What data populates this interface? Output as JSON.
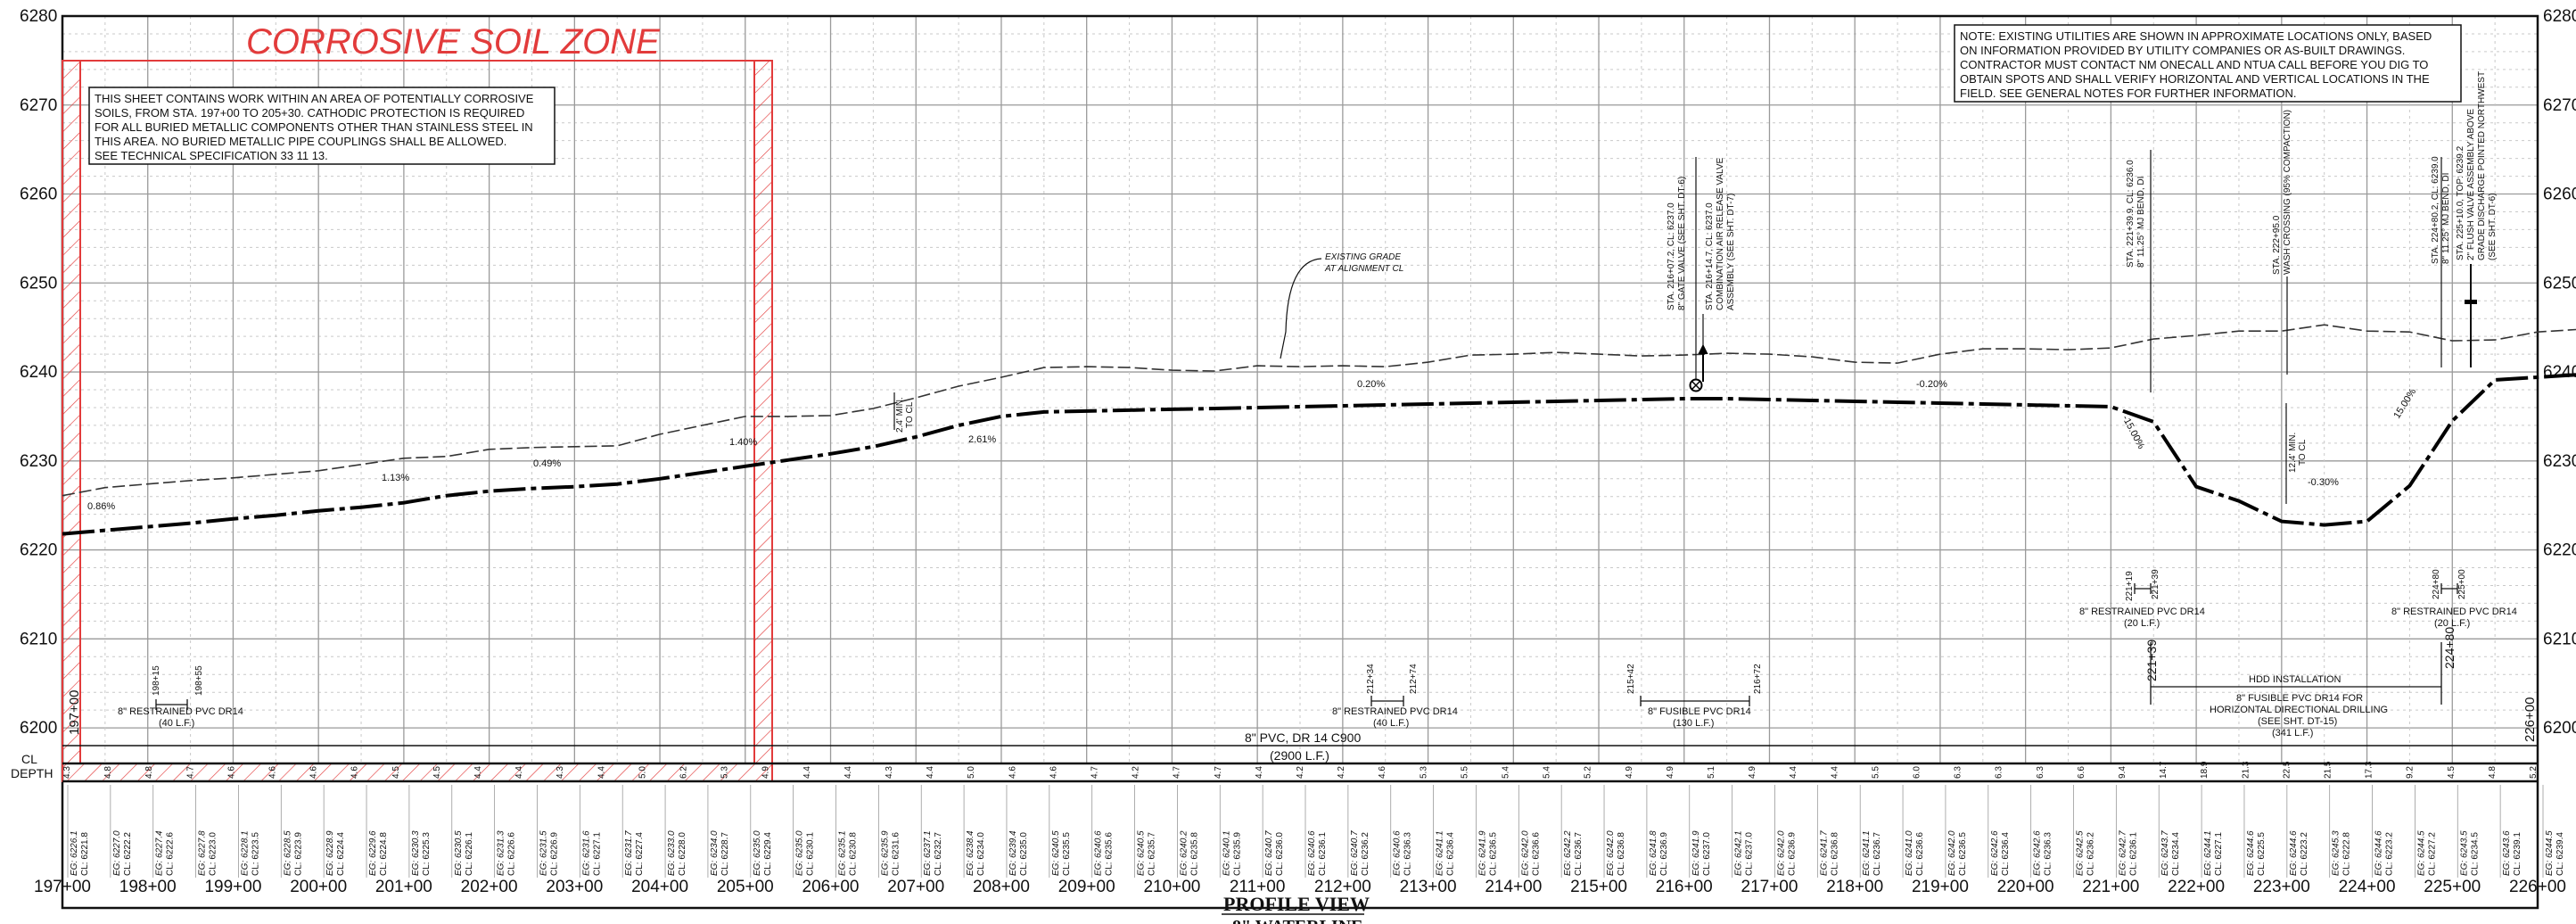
{
  "zone_title": "CORROSIVE SOIL ZONE",
  "corrosive_note": [
    "THIS SHEET CONTAINS WORK WITHIN AN AREA OF POTENTIALLY CORROSIVE",
    "SOILS, FROM STA. 197+00 TO 205+30.  CATHODIC PROTECTION IS REQUIRED",
    "FOR ALL BURIED METALLIC COMPONENTS OTHER THAN STAINLESS STEEL IN",
    "THIS AREA.  NO BURIED METALLIC PIPE COUPLINGS SHALL BE ALLOWED.",
    "SEE TECHNICAL SPECIFICATION 33 11 13."
  ],
  "utility_note": [
    "NOTE: EXISTING UTILITIES ARE SHOWN IN APPROXIMATE LOCATIONS ONLY, BASED",
    "ON INFORMATION PROVIDED BY UTILITY COMPANIES OR AS-BUILT DRAWINGS.",
    "CONTRACTOR MUST CONTACT NM ONECALL AND NTUA CALL BEFORE YOU DIG TO",
    "OBTAIN SPOTS AND SHALL VERIFY HORIZONTAL AND VERTICAL LOCATIONS IN THE",
    "FIELD. SEE GENERAL NOTES FOR FURTHER INFORMATION."
  ],
  "elevation_labels": [
    "6280",
    "6270",
    "6260",
    "6250",
    "6240",
    "6230",
    "6220",
    "6210",
    "6200"
  ],
  "station_labels": [
    "197+00",
    "198+00",
    "199+00",
    "200+00",
    "201+00",
    "202+00",
    "203+00",
    "204+00",
    "205+00",
    "206+00",
    "207+00",
    "208+00",
    "209+00",
    "210+00",
    "211+00",
    "212+00",
    "213+00",
    "214+00",
    "215+00",
    "216+00",
    "217+00",
    "218+00",
    "219+00",
    "220+00",
    "221+00",
    "222+00",
    "223+00",
    "224+00",
    "225+00",
    "226+00"
  ],
  "depth_values": [
    "4.3",
    "4.8",
    "4.8",
    "4.7",
    "4.6",
    "4.6",
    "4.6",
    "4.6",
    "4.5",
    "4.5",
    "4.4",
    "4.4",
    "4.3",
    "4.4",
    "5.0",
    "6.2",
    "5.3",
    "4.9",
    "4.4",
    "4.4",
    "4.3",
    "4.4",
    "5.0",
    "4.6",
    "4.6",
    "4.7",
    "4.2",
    "4.7",
    "4.7",
    "4.4",
    "4.2",
    "4.2",
    "4.6",
    "5.3",
    "5.5",
    "5.4",
    "5.4",
    "5.2",
    "4.9",
    "4.9",
    "5.1",
    "4.9",
    "4.4",
    "4.4",
    "5.5",
    "6.0",
    "6.3",
    "6.3",
    "6.3",
    "6.6",
    "9.4",
    "14.7",
    "18.9",
    "21.3",
    "22.5",
    "21.5",
    "17.3",
    "9.2",
    "4.5",
    "4.8",
    "5.2"
  ],
  "profile_rows": [
    [
      "6226.1",
      "6221.8"
    ],
    [
      "6227.0",
      "6222.2"
    ],
    [
      "6227.4",
      "6222.6"
    ],
    [
      "6227.8",
      "6223.0"
    ],
    [
      "6228.1",
      "6223.5"
    ],
    [
      "6228.5",
      "6223.9"
    ],
    [
      "6228.9",
      "6224.4"
    ],
    [
      "6229.6",
      "6224.8"
    ],
    [
      "6230.3",
      "6225.3"
    ],
    [
      "6230.5",
      "6226.1"
    ],
    [
      "6231.3",
      "6226.6"
    ],
    [
      "6231.5",
      "6226.9"
    ],
    [
      "6231.6",
      "6227.1"
    ],
    [
      "6231.7",
      "6227.4"
    ],
    [
      "6233.0",
      "6228.0"
    ],
    [
      "6234.0",
      "6228.7"
    ],
    [
      "6235.0",
      "6229.4"
    ],
    [
      "6235.0",
      "6230.1"
    ],
    [
      "6235.1",
      "6230.8"
    ],
    [
      "6235.9",
      "6231.6"
    ],
    [
      "6237.1",
      "6232.7"
    ],
    [
      "6238.4",
      "6234.0"
    ],
    [
      "6239.4",
      "6235.0"
    ],
    [
      "6240.5",
      "6235.5"
    ],
    [
      "6240.6",
      "6235.6"
    ],
    [
      "6240.5",
      "6235.7"
    ],
    [
      "6240.2",
      "6235.8"
    ],
    [
      "6240.1",
      "6235.9"
    ],
    [
      "6240.7",
      "6236.0"
    ],
    [
      "6240.6",
      "6236.1"
    ],
    [
      "6240.7",
      "6236.2"
    ],
    [
      "6240.6",
      "6236.3"
    ],
    [
      "6241.1",
      "6236.4"
    ],
    [
      "6241.9",
      "6236.5"
    ],
    [
      "6242.0",
      "6236.6"
    ],
    [
      "6242.2",
      "6236.7"
    ],
    [
      "6242.0",
      "6236.8"
    ],
    [
      "6241.8",
      "6236.9"
    ],
    [
      "6241.9",
      "6237.0"
    ],
    [
      "6242.1",
      "6237.0"
    ],
    [
      "6242.0",
      "6236.9"
    ],
    [
      "6241.7",
      "6236.8"
    ],
    [
      "6241.1",
      "6236.7"
    ],
    [
      "6241.0",
      "6236.6"
    ],
    [
      "6242.0",
      "6236.5"
    ],
    [
      "6242.6",
      "6236.4"
    ],
    [
      "6242.6",
      "6236.3"
    ],
    [
      "6242.5",
      "6236.2"
    ],
    [
      "6242.7",
      "6236.1"
    ],
    [
      "6243.7",
      "6234.4"
    ],
    [
      "6244.1",
      "6227.1"
    ],
    [
      "6244.6",
      "6225.5"
    ],
    [
      "6244.6",
      "6223.2"
    ],
    [
      "6245.3",
      "6222.8"
    ],
    [
      "6244.6",
      "6223.2"
    ],
    [
      "6244.5",
      "6227.2"
    ],
    [
      "6243.5",
      "6234.5"
    ],
    [
      "6243.6",
      "6239.1"
    ],
    [
      "6244.5",
      "6239.4"
    ],
    [
      "6244.8",
      "6239.7"
    ]
  ],
  "row_label_eg": "EG:",
  "row_label_cl": "CL:",
  "cl_depth_label": [
    "CL",
    "DEPTH"
  ],
  "grades": [
    "0.86%",
    "1.13%",
    "0.49%",
    "1.40%",
    "2.61%",
    "0.20%",
    "-0.20%",
    "-15.00%",
    "-0.30%",
    "15.00%"
  ],
  "existing_grade_label": [
    "EXISTING GRADE",
    "AT ALIGNMENT CL"
  ],
  "pipe_summary": [
    "8\" PVC, DR 14 C900",
    "(2900 L.F.)"
  ],
  "sta_197": "197+00",
  "sta_226": "226+00",
  "restrained_1": {
    "title": "8\" RESTRAINED PVC DR14",
    "length": "(40 L.F.)",
    "from": "198+15",
    "to": "198+55"
  },
  "restrained_2": {
    "title": "8\" RESTRAINED PVC DR14",
    "length": "(40 L.F.)",
    "from": "212+34",
    "to": "212+74"
  },
  "fusible_1": {
    "title": "8\" FUSIBLE PVC DR14",
    "length": "(130 L.F.)",
    "from": "215+42",
    "to": "216+72"
  },
  "restrained_3": {
    "title": "8\" RESTRAINED PVC DR14",
    "length": "(20 L.F.)",
    "from": "221+19",
    "to": "221+39"
  },
  "restrained_4": {
    "title": "8\" RESTRAINED PVC DR14",
    "length": "(20 L.F.)",
    "from": "224+80",
    "to": "225+00"
  },
  "hdd": {
    "title": "HDD INSTALLATION",
    "lines": [
      "8\" FUSIBLE PVC DR14 FOR",
      "HORIZONTAL DIRECTIONAL DRILLING",
      "(SEE SHT. DT-15)",
      "(341 L.F.)"
    ],
    "from": "221+39",
    "to": "224+80"
  },
  "min_cover_1": [
    "2.4' MIN.",
    "TO CL"
  ],
  "min_cover_2": [
    "12.4' MIN.",
    "TO CL"
  ],
  "callout_gate": [
    "STA. 216+07.2, CL: 6237.0",
    "8\" GATE VALVE (SEE SHT. DT-6)"
  ],
  "callout_arv": [
    "STA. 216+14.7, CL: 6237.0",
    "COMBINATION AIR RELEASE VALVE",
    "ASSEMBLY (SEE SHT. DT-7)"
  ],
  "callout_bend1": [
    "STA. 221+39.9, CL: 6236.0",
    "8\" 11.25° MJ BEND, DI"
  ],
  "callout_wash": [
    "STA. 222+95.0",
    "WASH CROSSING (95% COMPACTION)"
  ],
  "callout_bend2": [
    "STA. 224+80.2, CL: 6239.0",
    "8\" 11.25° MJ BEND, DI"
  ],
  "callout_blowoff": [
    "STA. 225+10.0, TOP: 6239.2",
    "2\" FLUSH VALVE ASSEMBLY ABOVE",
    "GRADE DISCHARGE POINTED NORTHWEST",
    "(SEE SHT. DT-6)"
  ],
  "view_title": "PROFILE VIEW",
  "view_subtitle": "8\" WATERLINE",
  "colors": {
    "ink": "#111111",
    "zone": "#e23b3b",
    "grid": "#bdbdbd"
  }
}
